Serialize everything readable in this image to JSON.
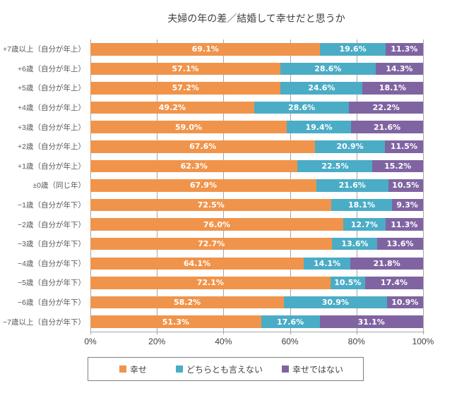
{
  "chart_data": {
    "type": "bar",
    "variant": "horizontal-stacked-100",
    "title": "夫婦の年の差／結婚して幸せだと思うか",
    "categories": [
      "+7歳以上（自分が年上）",
      "+6歳（自分が年上）",
      "+5歳（自分が年上）",
      "+4歳（自分が年上）",
      "+3歳（自分が年上）",
      "+2歳（自分が年上）",
      "+1歳（自分が年上）",
      "±0歳（同じ年）",
      "−1歳（自分が年下）",
      "−2歳（自分が年下）",
      "−3歳（自分が年下）",
      "−4歳（自分が年下）",
      "−5歳（自分が年下）",
      "−6歳（自分が年下）",
      "−7歳以上（自分が年下）"
    ],
    "series": [
      {
        "name": "幸せ",
        "key": "happy",
        "color": "#F0944B",
        "values": [
          69.1,
          57.1,
          57.2,
          49.2,
          59.0,
          67.6,
          62.3,
          67.9,
          72.5,
          76.0,
          72.7,
          64.1,
          72.1,
          58.2,
          51.3
        ]
      },
      {
        "name": "どちらとも言えない",
        "key": "neutral",
        "color": "#4BACC6",
        "values": [
          19.6,
          28.6,
          24.6,
          28.6,
          19.4,
          20.9,
          22.5,
          21.6,
          18.1,
          12.7,
          13.6,
          14.1,
          10.5,
          30.9,
          17.6
        ]
      },
      {
        "name": "幸せではない",
        "key": "unhappy",
        "color": "#8064A2",
        "values": [
          11.3,
          14.3,
          18.1,
          22.2,
          21.6,
          11.5,
          15.2,
          10.5,
          9.3,
          11.3,
          13.6,
          21.8,
          17.4,
          10.9,
          31.1
        ]
      }
    ],
    "x_ticks": [
      "0%",
      "20%",
      "40%",
      "60%",
      "80%",
      "100%"
    ],
    "xlim": [
      0,
      100
    ],
    "grid": true,
    "legend_position": "bottom",
    "value_label_format": "0.0%"
  }
}
